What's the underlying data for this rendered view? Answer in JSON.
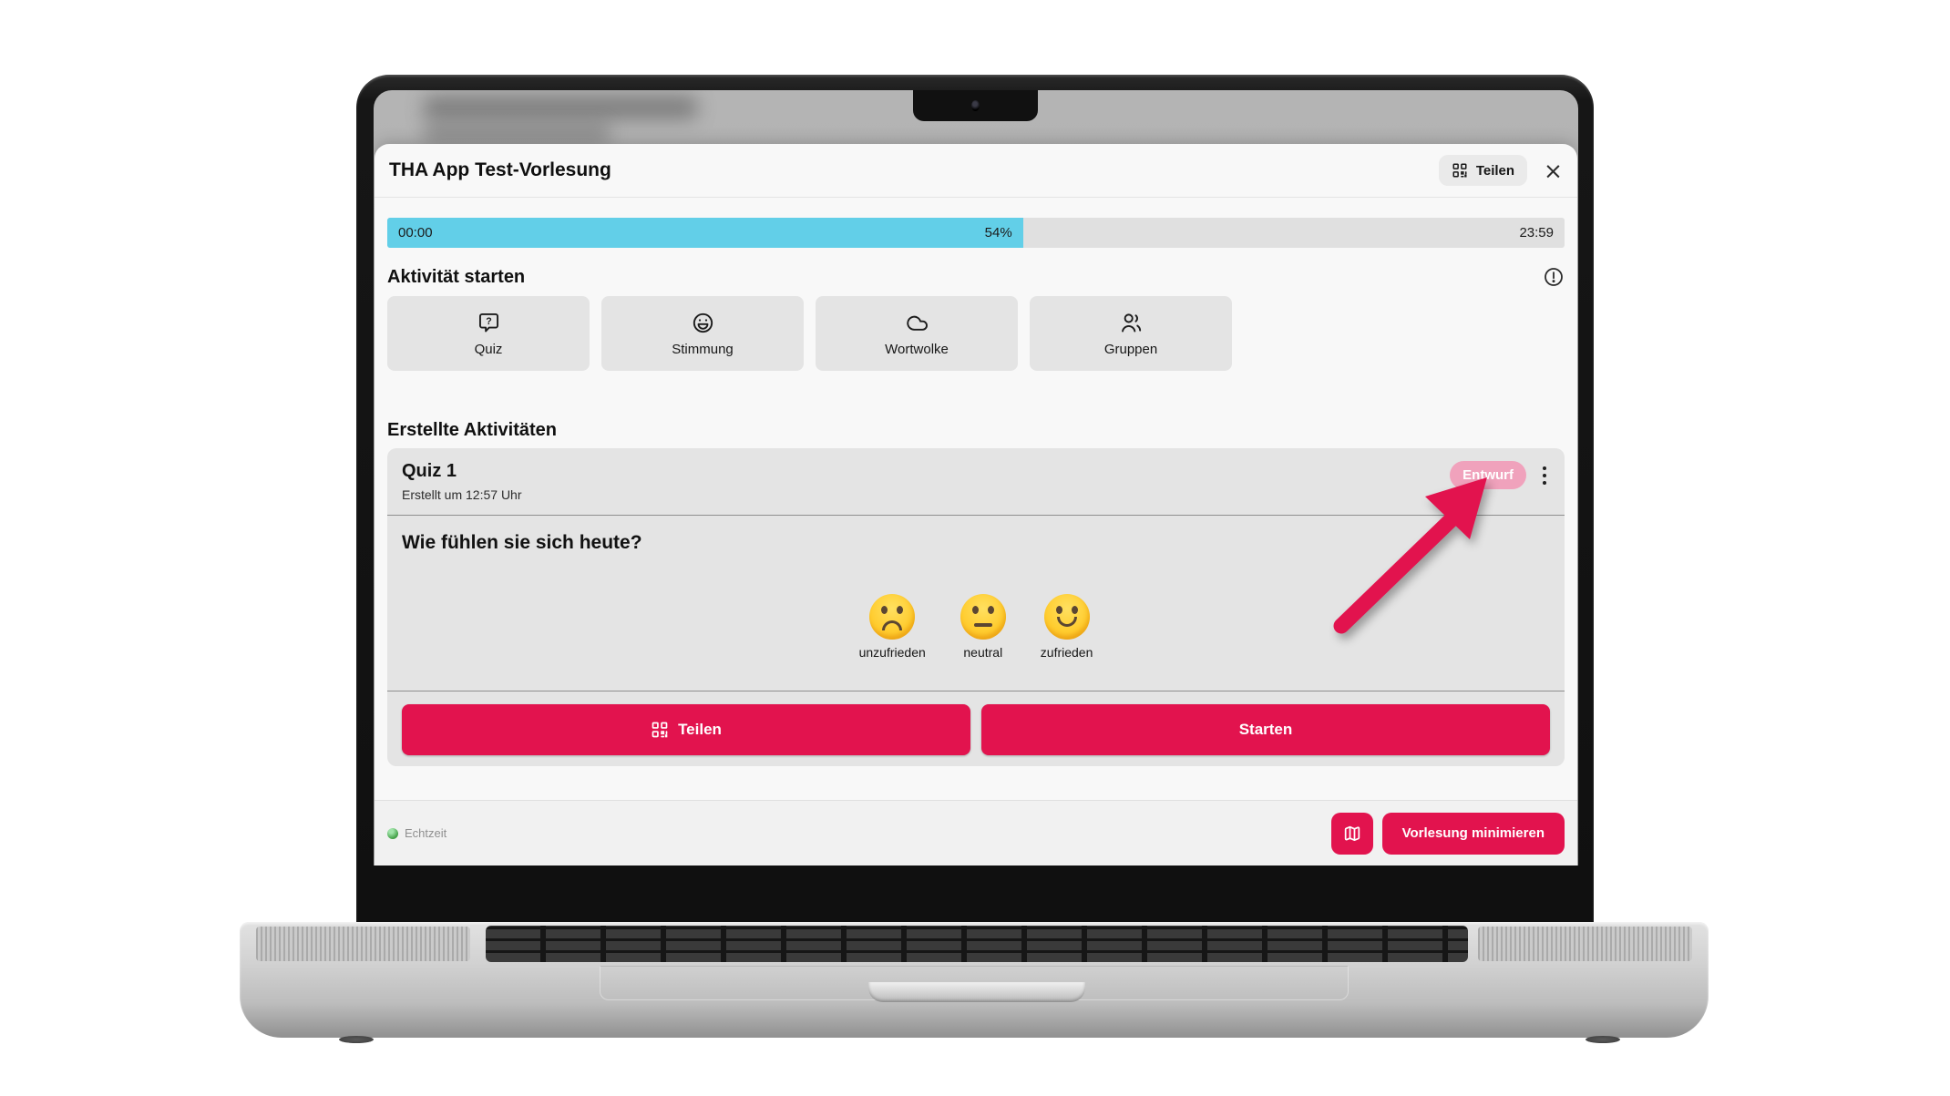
{
  "window": {
    "title": "THA App Test-Vorlesung",
    "share_label": "Teilen",
    "close_glyph": "×"
  },
  "progress": {
    "start_time": "00:00",
    "percent": 54,
    "percent_label": "54%",
    "end_time": "23:59"
  },
  "start_activity": {
    "heading": "Aktivität starten",
    "cards": [
      {
        "icon": "quiz-bubble-icon",
        "label": "Quiz"
      },
      {
        "icon": "smiley-icon",
        "label": "Stimmung"
      },
      {
        "icon": "cloud-icon",
        "label": "Wortwolke"
      },
      {
        "icon": "users-icon",
        "label": "Gruppen"
      }
    ]
  },
  "created_activities": {
    "heading": "Erstellte Aktivitäten",
    "activity": {
      "title": "Quiz 1",
      "created_at": "Erstellt um 12:57 Uhr",
      "status_badge": "Entwurf",
      "question": "Wie fühlen sie sich heute?",
      "options": [
        {
          "mood": "sad",
          "label": "unzufrieden"
        },
        {
          "mood": "neutral",
          "label": "neutral"
        },
        {
          "mood": "happy",
          "label": "zufrieden"
        }
      ],
      "share_label": "Teilen",
      "start_label": "Starten"
    }
  },
  "footer": {
    "status_label": "Echtzeit",
    "minimize_label": "Vorlesung minimieren"
  },
  "colors": {
    "accent": "#E2134E",
    "badge_bg": "#F0A2BC",
    "badge_text": "#FFFFFF",
    "progress_fill": "#62CFE8",
    "progress_track": "#E0E0E0",
    "status_green": "#43A047"
  }
}
